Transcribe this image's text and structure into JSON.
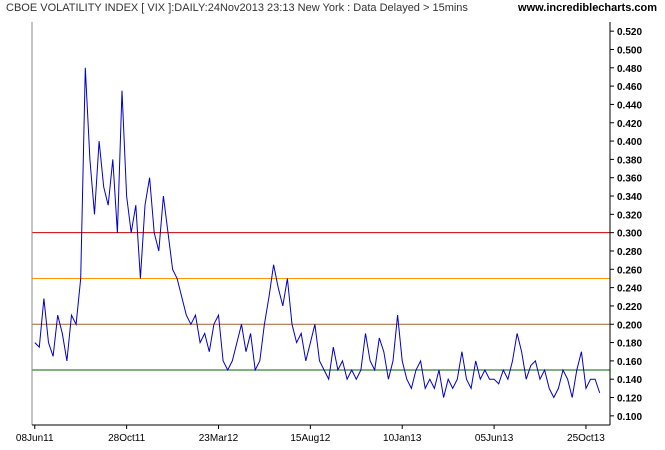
{
  "header": {
    "title": "CBOE VOLATILITY INDEX [ VIX ]:DAILY:24Nov2013 23:13 New York : Data Delayed > 15mins",
    "site": "www.incrediblecharts.com"
  },
  "chart_data": {
    "type": "line",
    "title": "CBOE VOLATILITY INDEX [ VIX ]:DAILY:24Nov2013 23:13 New York : Data Delayed > 15mins",
    "xlabel": "",
    "ylabel": "",
    "ylim": [
      0.09,
      0.53
    ],
    "grid": false,
    "y_tick_labels": [
      "0.100",
      "0.120",
      "0.140",
      "0.160",
      "0.180",
      "0.200",
      "0.220",
      "0.240",
      "0.260",
      "0.280",
      "0.300",
      "0.320",
      "0.340",
      "0.360",
      "0.380",
      "0.400",
      "0.420",
      "0.440",
      "0.460",
      "0.480",
      "0.500",
      "0.520"
    ],
    "x_tick_labels": [
      "08Jun11",
      "28Oct11",
      "23Mar12",
      "15Aug12",
      "10Jan13",
      "05Jun13",
      "25Oct13"
    ],
    "x_tick_index": [
      0,
      100,
      200,
      300,
      400,
      500,
      600
    ],
    "x_range": [
      -3,
      624
    ],
    "hlines": [
      {
        "value": 0.3,
        "color": "#cc0000"
      },
      {
        "value": 0.25,
        "color": "#ff9900"
      },
      {
        "value": 0.2,
        "color": "#996633"
      },
      {
        "value": 0.15,
        "color": "#006600"
      }
    ],
    "series": [
      {
        "color": "#0000cc",
        "x": [
          0,
          5,
          10,
          15,
          20,
          25,
          30,
          35,
          40,
          45,
          50,
          55,
          60,
          65,
          70,
          75,
          80,
          85,
          90,
          95,
          100,
          105,
          110,
          115,
          120,
          125,
          130,
          135,
          140,
          145,
          150,
          155,
          160,
          165,
          170,
          175,
          180,
          185,
          190,
          195,
          200,
          205,
          210,
          215,
          220,
          225,
          230,
          235,
          240,
          245,
          250,
          255,
          260,
          265,
          270,
          275,
          280,
          285,
          290,
          295,
          300,
          305,
          310,
          315,
          320,
          325,
          330,
          335,
          340,
          345,
          350,
          355,
          360,
          365,
          370,
          375,
          380,
          385,
          390,
          395,
          400,
          405,
          410,
          415,
          420,
          425,
          430,
          435,
          440,
          445,
          450,
          455,
          460,
          465,
          470,
          475,
          480,
          485,
          490,
          495,
          500,
          505,
          510,
          515,
          520,
          525,
          530,
          535,
          540,
          545,
          550,
          555,
          560,
          565,
          570,
          575,
          580,
          585,
          590,
          595,
          600,
          605,
          610,
          615
        ],
        "values": [
          0.18,
          0.175,
          0.228,
          0.18,
          0.165,
          0.21,
          0.19,
          0.16,
          0.21,
          0.2,
          0.25,
          0.48,
          0.38,
          0.32,
          0.4,
          0.35,
          0.33,
          0.38,
          0.3,
          0.455,
          0.34,
          0.3,
          0.33,
          0.25,
          0.33,
          0.36,
          0.3,
          0.28,
          0.34,
          0.3,
          0.26,
          0.25,
          0.23,
          0.21,
          0.2,
          0.21,
          0.18,
          0.19,
          0.17,
          0.2,
          0.21,
          0.16,
          0.15,
          0.16,
          0.18,
          0.2,
          0.17,
          0.19,
          0.15,
          0.16,
          0.2,
          0.23,
          0.265,
          0.24,
          0.22,
          0.25,
          0.2,
          0.18,
          0.19,
          0.16,
          0.18,
          0.2,
          0.16,
          0.15,
          0.14,
          0.175,
          0.15,
          0.16,
          0.14,
          0.15,
          0.14,
          0.15,
          0.19,
          0.16,
          0.15,
          0.185,
          0.17,
          0.14,
          0.16,
          0.21,
          0.16,
          0.14,
          0.13,
          0.15,
          0.16,
          0.13,
          0.14,
          0.13,
          0.15,
          0.12,
          0.14,
          0.13,
          0.14,
          0.17,
          0.14,
          0.13,
          0.16,
          0.14,
          0.15,
          0.14,
          0.14,
          0.135,
          0.15,
          0.14,
          0.16,
          0.19,
          0.17,
          0.14,
          0.155,
          0.16,
          0.14,
          0.15,
          0.13,
          0.12,
          0.13,
          0.15,
          0.14,
          0.12,
          0.15,
          0.17,
          0.13,
          0.14,
          0.14,
          0.125
        ]
      }
    ]
  }
}
